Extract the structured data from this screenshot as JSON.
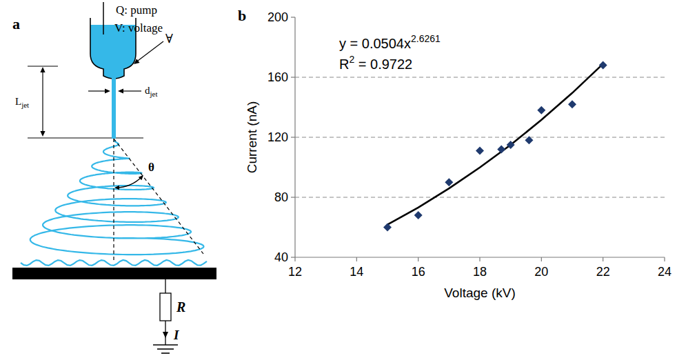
{
  "diagram": {
    "letter": "a",
    "pump_label": "Q: pump",
    "voltage_label": "V: voltage",
    "symbol": "∀",
    "jet_length": {
      "main": "L",
      "sub": "jet"
    },
    "jet_diameter": {
      "main": "d",
      "sub": "jet"
    },
    "angle": "θ",
    "resistor": "R",
    "current": "I"
  },
  "chart_data": {
    "letter": "b",
    "type": "scatter",
    "x_label": "Voltage (kV)",
    "y_label": "Current (nA)",
    "equation": {
      "text": "y = 0.0504x",
      "exponent": "2.6261"
    },
    "r_squared": {
      "text": "R",
      "exponent": "2",
      "suffix": " = 0.9722"
    },
    "xlim": [
      12,
      24
    ],
    "xticks": [
      12,
      14,
      16,
      18,
      20,
      22,
      24
    ],
    "ylim": [
      40,
      200
    ],
    "yticks": [
      40,
      80,
      120,
      160,
      200
    ],
    "grid": true,
    "series": [
      {
        "type": "scatter",
        "marker": "diamond",
        "color": "#1f3a6e",
        "x": [
          15,
          16,
          17,
          18,
          18.7,
          19,
          19.6,
          20,
          21,
          22
        ],
        "values": [
          60,
          68,
          90,
          111,
          112,
          115,
          118,
          138,
          142,
          168
        ]
      },
      {
        "type": "line",
        "line_style": "solid",
        "color": "#000000",
        "x": [
          15,
          16,
          17,
          18,
          19,
          20,
          21,
          22
        ],
        "values": [
          61.8,
          73.2,
          85.9,
          99.9,
          114.9,
          131.6,
          149.5,
          168.9
        ]
      }
    ]
  }
}
